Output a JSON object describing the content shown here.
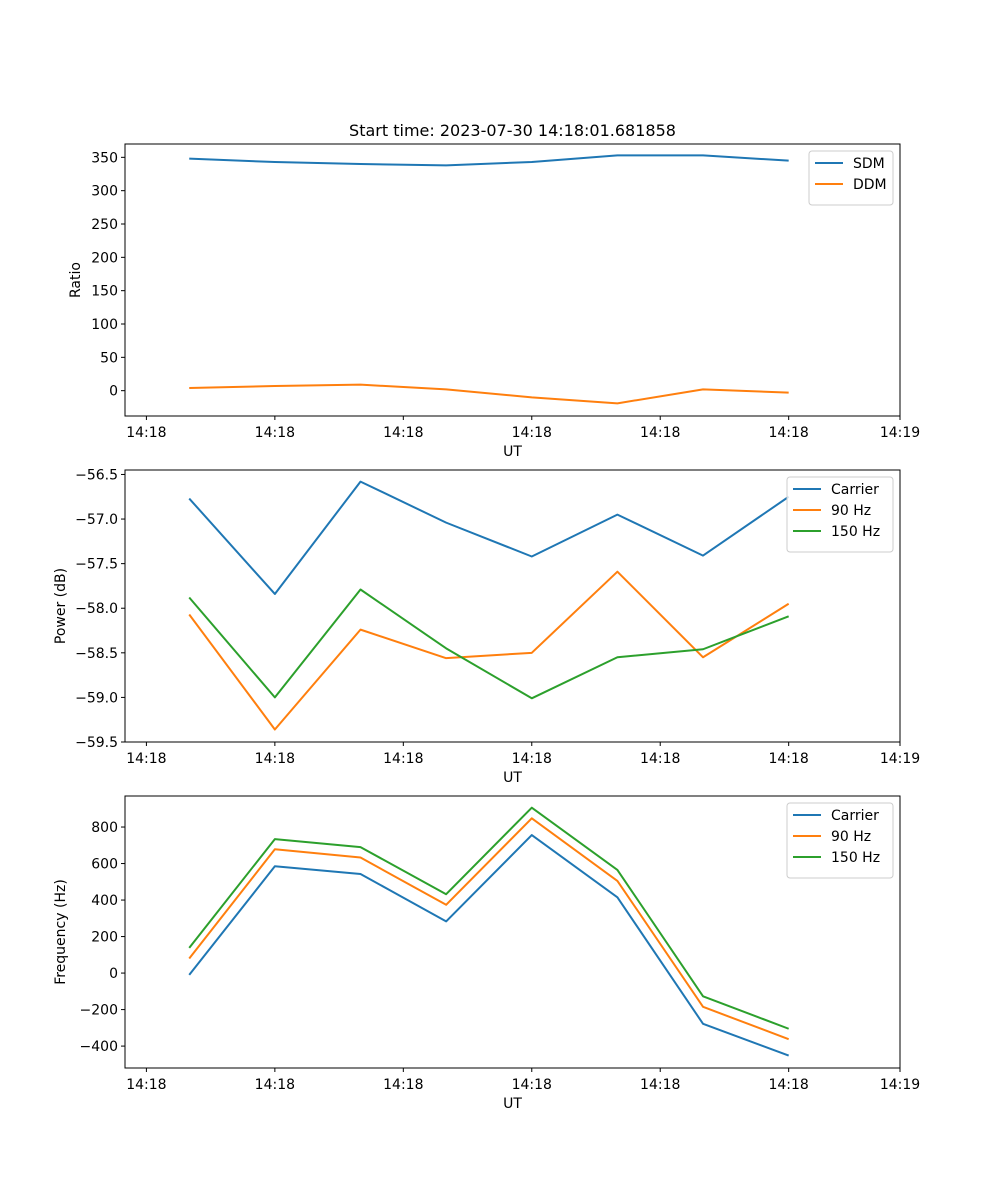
{
  "figure": {
    "title": "Start time: 2023-07-30 14:18:01.681858"
  },
  "colors": {
    "blue": "#1f77b4",
    "orange": "#ff7f0e",
    "green": "#2ca02c"
  },
  "chart_data": [
    {
      "type": "line",
      "title": "Start time: 2023-07-30 14:18:01.681858",
      "xlabel": "UT",
      "ylabel": "Ratio",
      "x": [
        1,
        2,
        3,
        4,
        5,
        6,
        7,
        8
      ],
      "xlim": [
        0.25,
        9.3
      ],
      "xticks": [
        0.5,
        2,
        3.5,
        5,
        6.5,
        8,
        9.3
      ],
      "xtick_labels": [
        "14:18",
        "14:18",
        "14:18",
        "14:18",
        "14:18",
        "14:18",
        "14:19"
      ],
      "ylim": [
        -38,
        370
      ],
      "yticks": [
        0,
        50,
        100,
        150,
        200,
        250,
        300,
        350
      ],
      "ytick_labels": [
        "0",
        "50",
        "100",
        "150",
        "200",
        "250",
        "300",
        "350"
      ],
      "legend": "top-right",
      "series": [
        {
          "name": "SDM",
          "color": "#1f77b4",
          "values": [
            348,
            343,
            340,
            338,
            343,
            353,
            353,
            345
          ]
        },
        {
          "name": "DDM",
          "color": "#ff7f0e",
          "values": [
            4,
            7,
            9,
            2,
            -10,
            -19,
            2,
            -3
          ]
        }
      ]
    },
    {
      "type": "line",
      "title": "",
      "xlabel": "UT",
      "ylabel": "Power (dB)",
      "x": [
        1,
        2,
        3,
        4,
        5,
        6,
        7,
        8
      ],
      "xlim": [
        0.25,
        9.3
      ],
      "xticks": [
        0.5,
        2,
        3.5,
        5,
        6.5,
        8,
        9.3
      ],
      "xtick_labels": [
        "14:18",
        "14:18",
        "14:18",
        "14:18",
        "14:18",
        "14:18",
        "14:19"
      ],
      "ylim": [
        -59.5,
        -56.45
      ],
      "yticks": [
        -59.5,
        -59.0,
        -58.5,
        -58.0,
        -57.5,
        -57.0,
        -56.5
      ],
      "ytick_labels": [
        "−59.5",
        "−59.0",
        "−58.5",
        "−58.0",
        "−57.5",
        "−57.0",
        "−56.5"
      ],
      "legend": "top-right",
      "series": [
        {
          "name": "Carrier",
          "color": "#1f77b4",
          "values": [
            -56.77,
            -57.84,
            -56.58,
            -57.04,
            -57.42,
            -56.95,
            -57.41,
            -56.75
          ]
        },
        {
          "name": "90 Hz",
          "color": "#ff7f0e",
          "values": [
            -58.07,
            -59.36,
            -58.24,
            -58.56,
            -58.5,
            -57.59,
            -58.55,
            -57.95
          ]
        },
        {
          "name": "150 Hz",
          "color": "#2ca02c",
          "values": [
            -57.88,
            -59.0,
            -57.79,
            -58.45,
            -59.01,
            -58.55,
            -58.46,
            -58.09
          ]
        }
      ]
    },
    {
      "type": "line",
      "title": "",
      "xlabel": "UT",
      "ylabel": "Frequency (Hz)",
      "x": [
        1,
        2,
        3,
        4,
        5,
        6,
        7,
        8
      ],
      "xlim": [
        0.25,
        9.3
      ],
      "xticks": [
        0.5,
        2,
        3.5,
        5,
        6.5,
        8,
        9.3
      ],
      "xtick_labels": [
        "14:18",
        "14:18",
        "14:18",
        "14:18",
        "14:18",
        "14:18",
        "14:19"
      ],
      "ylim": [
        -520,
        970
      ],
      "yticks": [
        -400,
        -200,
        0,
        200,
        400,
        600,
        800
      ],
      "ytick_labels": [
        "−400",
        "−200",
        "0",
        "200",
        "400",
        "600",
        "800"
      ],
      "legend": "top-right",
      "series": [
        {
          "name": "Carrier",
          "color": "#1f77b4",
          "values": [
            -10,
            585,
            543,
            283,
            756,
            415,
            -278,
            -452
          ]
        },
        {
          "name": "90 Hz",
          "color": "#ff7f0e",
          "values": [
            80,
            678,
            633,
            374,
            848,
            505,
            -185,
            -362
          ]
        },
        {
          "name": "150 Hz",
          "color": "#2ca02c",
          "values": [
            138,
            734,
            690,
            432,
            906,
            565,
            -127,
            -305
          ]
        }
      ]
    }
  ]
}
